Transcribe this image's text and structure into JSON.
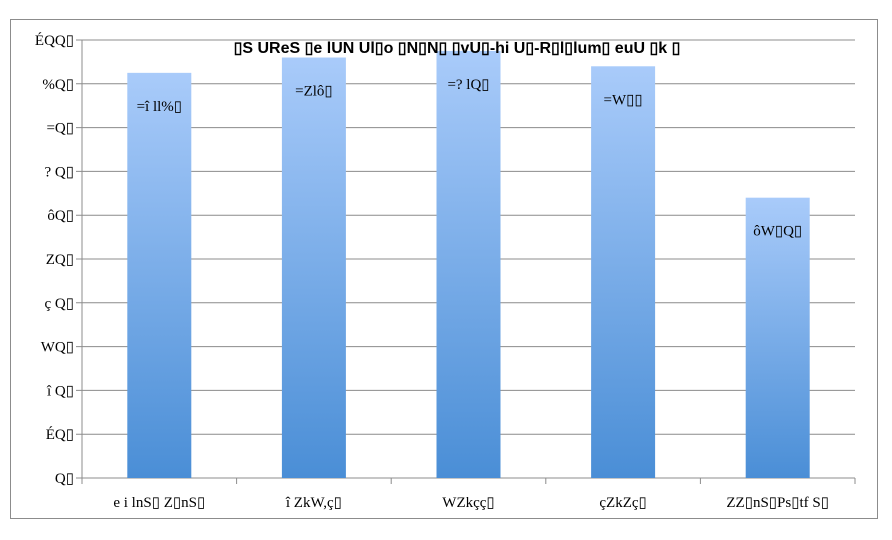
{
  "chart_data": {
    "type": "bar",
    "title": "▯S   UReS  ▯e  lUN  Ul▯o ▯N▯N▯  ▯vU▯-hi U▯-R▯l▯lum▯  euU  ▯k  ▯",
    "categories": [
      "e i lnS▯ Z▯nS▯",
      "î ZkW,ç▯",
      "WZkçç▯",
      "çZkZç▯",
      "ZZ▯nS▯Ps▯tf S▯"
    ],
    "values": [
      92.5,
      96,
      97.5,
      94,
      64
    ],
    "data_labels": [
      "=î ll%▯",
      "=Zlô▯",
      "=? lQ▯",
      "=W▯▯",
      "ôW▯Q▯"
    ],
    "ylim": [
      0,
      100
    ],
    "yticks": [
      "Q▯",
      "ÉQ▯",
      "î Q▯",
      "WQ▯",
      "ç Q▯",
      "ZQ▯",
      "ôQ▯",
      "? Q▯",
      "=Q▯",
      "%Q▯",
      "ÉQQ▯"
    ],
    "grid": true,
    "colors": {
      "bar_top": "#a9cbfa",
      "bar_bottom": "#4a8ed6",
      "grid": "#8c8c8c",
      "axis": "#8c8c8c"
    }
  }
}
